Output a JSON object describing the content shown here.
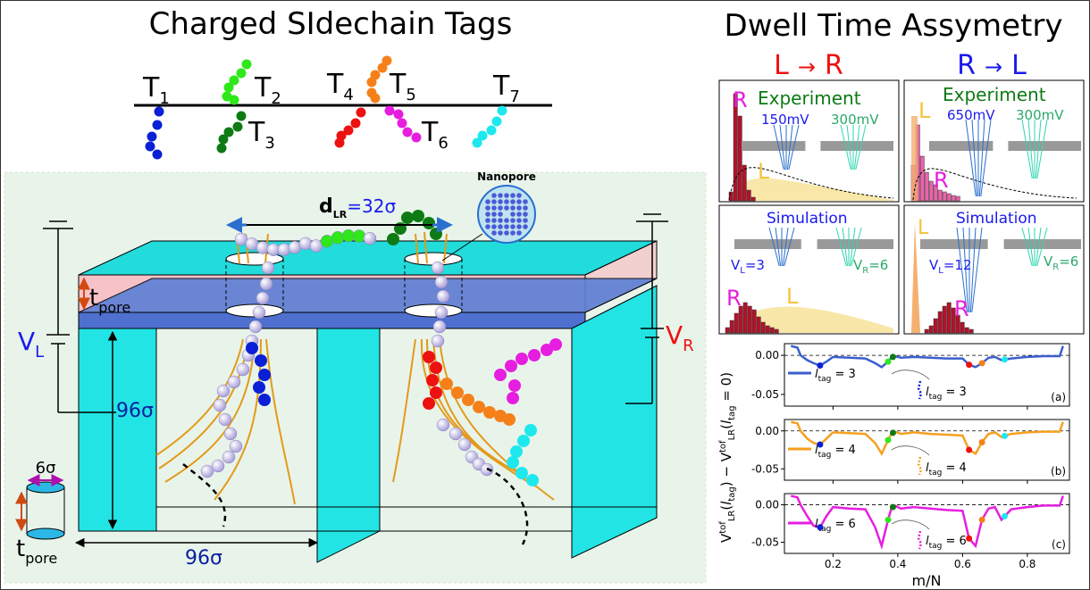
{
  "left": {
    "title": "Charged SIdechain Tags",
    "tags": [
      {
        "label": "T",
        "sub": "1",
        "color": "#0a1fd6"
      },
      {
        "label": "T",
        "sub": "2",
        "color": "#2ee81a"
      },
      {
        "label": "T",
        "sub": "3",
        "color": "#0e7a14"
      },
      {
        "label": "T",
        "sub": "4",
        "color": "#ee1111"
      },
      {
        "label": "T",
        "sub": "5",
        "color": "#f5801a"
      },
      {
        "label": "T",
        "sub": "6",
        "color": "#e61ee0"
      },
      {
        "label": "T",
        "sub": "7",
        "color": "#1ee8ee"
      }
    ],
    "schematic": {
      "nanopore_label": "Nanopore",
      "dlr_d": "d",
      "dlr_sub": "LR",
      "dlr_value": "=32σ",
      "tpore_t": "t",
      "tpore_sub": "pore",
      "vl_v": "V",
      "vl_sub": "L",
      "vr_v": "V",
      "vr_sub": "R",
      "height_label": "96σ",
      "width_label": "96σ",
      "cyl_width_label": "6σ",
      "cyl_t": "t",
      "cyl_sub": "pore"
    }
  },
  "right": {
    "title": "Dwell Time Assymetry",
    "lr_head": {
      "a": "L",
      "arrow": "→",
      "b": "R"
    },
    "rl_head": {
      "a": "R",
      "arrow": "→",
      "b": "L"
    },
    "panels": {
      "lr_exp": {
        "title": "Experiment",
        "v1": "150mV",
        "v2": "300mV",
        "big": "R",
        "small": "L"
      },
      "rl_exp": {
        "title": "Experiment",
        "v1": "650mV",
        "v2": "300mV",
        "big": "L",
        "small": "R"
      },
      "lr_sim": {
        "title": "Simulation",
        "vl_v": "V",
        "vl_sub": "L",
        "vl_val": "=3",
        "vr_v": "V",
        "vr_sub": "R",
        "vr_val": "=6",
        "big": "R",
        "small": "L"
      },
      "rl_sim": {
        "title": "Simulation",
        "vl_v": "V",
        "vl_sub": "L",
        "vl_val": "=12",
        "vr_v": "V",
        "vr_sub": "R",
        "vr_val": "=6",
        "big": "L",
        "small": "R"
      }
    },
    "colors": {
      "lr_red": "#ee1111",
      "rl_blue": "#1a1aee",
      "experiment": "#0e7a14",
      "sim_blue": "#1a1aee",
      "v300": "#2aa86a"
    }
  },
  "chart_data": {
    "type": "line",
    "xlabel": "m/N",
    "ylabel": "V_LR^tof(l_tag) − V_LR^tof(l_tag = 0)",
    "xlim": [
      0.05,
      0.93
    ],
    "xticks": [
      "0.2",
      "0.4",
      "0.6",
      "0.8"
    ],
    "xtick_values": [
      0.2,
      0.4,
      0.6,
      0.8
    ],
    "subplots": [
      {
        "id": "(a)",
        "legend": "l_tag = 3",
        "legend_l": "l",
        "legend_sub": "tag",
        "legend_val": " = 3",
        "color": "#3a5fcd",
        "ylim": [
          -0.065,
          0.015
        ],
        "yticks": [
          "0.00",
          "-0.05"
        ],
        "ytick_values": [
          0,
          -0.05
        ],
        "x": [
          0.07,
          0.09,
          0.1,
          0.12,
          0.14,
          0.16,
          0.18,
          0.2,
          0.25,
          0.3,
          0.33,
          0.35,
          0.37,
          0.38,
          0.39,
          0.41,
          0.45,
          0.5,
          0.55,
          0.6,
          0.62,
          0.64,
          0.66,
          0.68,
          0.7,
          0.72,
          0.75,
          0.8,
          0.85,
          0.9,
          0.91
        ],
        "y": [
          0.012,
          0.01,
          0.0,
          -0.006,
          -0.01,
          -0.013,
          -0.008,
          -0.002,
          -0.003,
          -0.004,
          -0.01,
          -0.015,
          -0.008,
          -0.003,
          -0.001,
          -0.003,
          -0.002,
          -0.003,
          -0.004,
          -0.004,
          -0.012,
          -0.015,
          -0.01,
          -0.003,
          -0.002,
          -0.006,
          -0.004,
          -0.002,
          -0.001,
          -0.001,
          0.012
        ]
      },
      {
        "id": "(b)",
        "legend": "l_tag = 4",
        "legend_l": "l",
        "legend_sub": "tag",
        "legend_val": " = 4",
        "color": "#f5a020",
        "ylim": [
          -0.065,
          0.015
        ],
        "yticks": [
          "0.00",
          "-0.05"
        ],
        "ytick_values": [
          0,
          -0.05
        ],
        "x": [
          0.07,
          0.09,
          0.1,
          0.12,
          0.14,
          0.16,
          0.18,
          0.2,
          0.25,
          0.3,
          0.33,
          0.35,
          0.37,
          0.38,
          0.39,
          0.41,
          0.45,
          0.5,
          0.55,
          0.6,
          0.62,
          0.64,
          0.66,
          0.68,
          0.7,
          0.72,
          0.75,
          0.8,
          0.85,
          0.9,
          0.91
        ],
        "y": [
          0.012,
          0.01,
          0.0,
          -0.01,
          -0.016,
          -0.018,
          -0.01,
          -0.002,
          -0.003,
          -0.004,
          -0.016,
          -0.03,
          -0.012,
          -0.004,
          -0.001,
          -0.004,
          -0.002,
          -0.004,
          -0.005,
          -0.006,
          -0.025,
          -0.03,
          -0.015,
          -0.004,
          -0.002,
          -0.008,
          -0.004,
          -0.002,
          -0.001,
          -0.001,
          0.012
        ]
      },
      {
        "id": "(c)",
        "legend": "l_tag = 6",
        "legend_l": "l",
        "legend_sub": "tag",
        "legend_val": " = 6",
        "color": "#e61ee0",
        "ylim": [
          -0.065,
          0.015
        ],
        "yticks": [
          "0.00",
          "-0.05"
        ],
        "ytick_values": [
          0,
          -0.05
        ],
        "x": [
          0.07,
          0.09,
          0.1,
          0.12,
          0.14,
          0.16,
          0.18,
          0.2,
          0.25,
          0.3,
          0.33,
          0.35,
          0.37,
          0.38,
          0.39,
          0.41,
          0.45,
          0.5,
          0.55,
          0.6,
          0.62,
          0.64,
          0.66,
          0.68,
          0.7,
          0.72,
          0.75,
          0.8,
          0.85,
          0.9,
          0.91
        ],
        "y": [
          0.012,
          0.01,
          0.0,
          -0.015,
          -0.028,
          -0.03,
          -0.015,
          -0.003,
          -0.005,
          -0.006,
          -0.03,
          -0.055,
          -0.02,
          -0.005,
          -0.001,
          -0.005,
          -0.003,
          -0.005,
          -0.007,
          -0.008,
          -0.045,
          -0.055,
          -0.02,
          -0.005,
          -0.003,
          -0.02,
          -0.006,
          -0.003,
          -0.001,
          -0.001,
          0.012
        ]
      }
    ]
  }
}
